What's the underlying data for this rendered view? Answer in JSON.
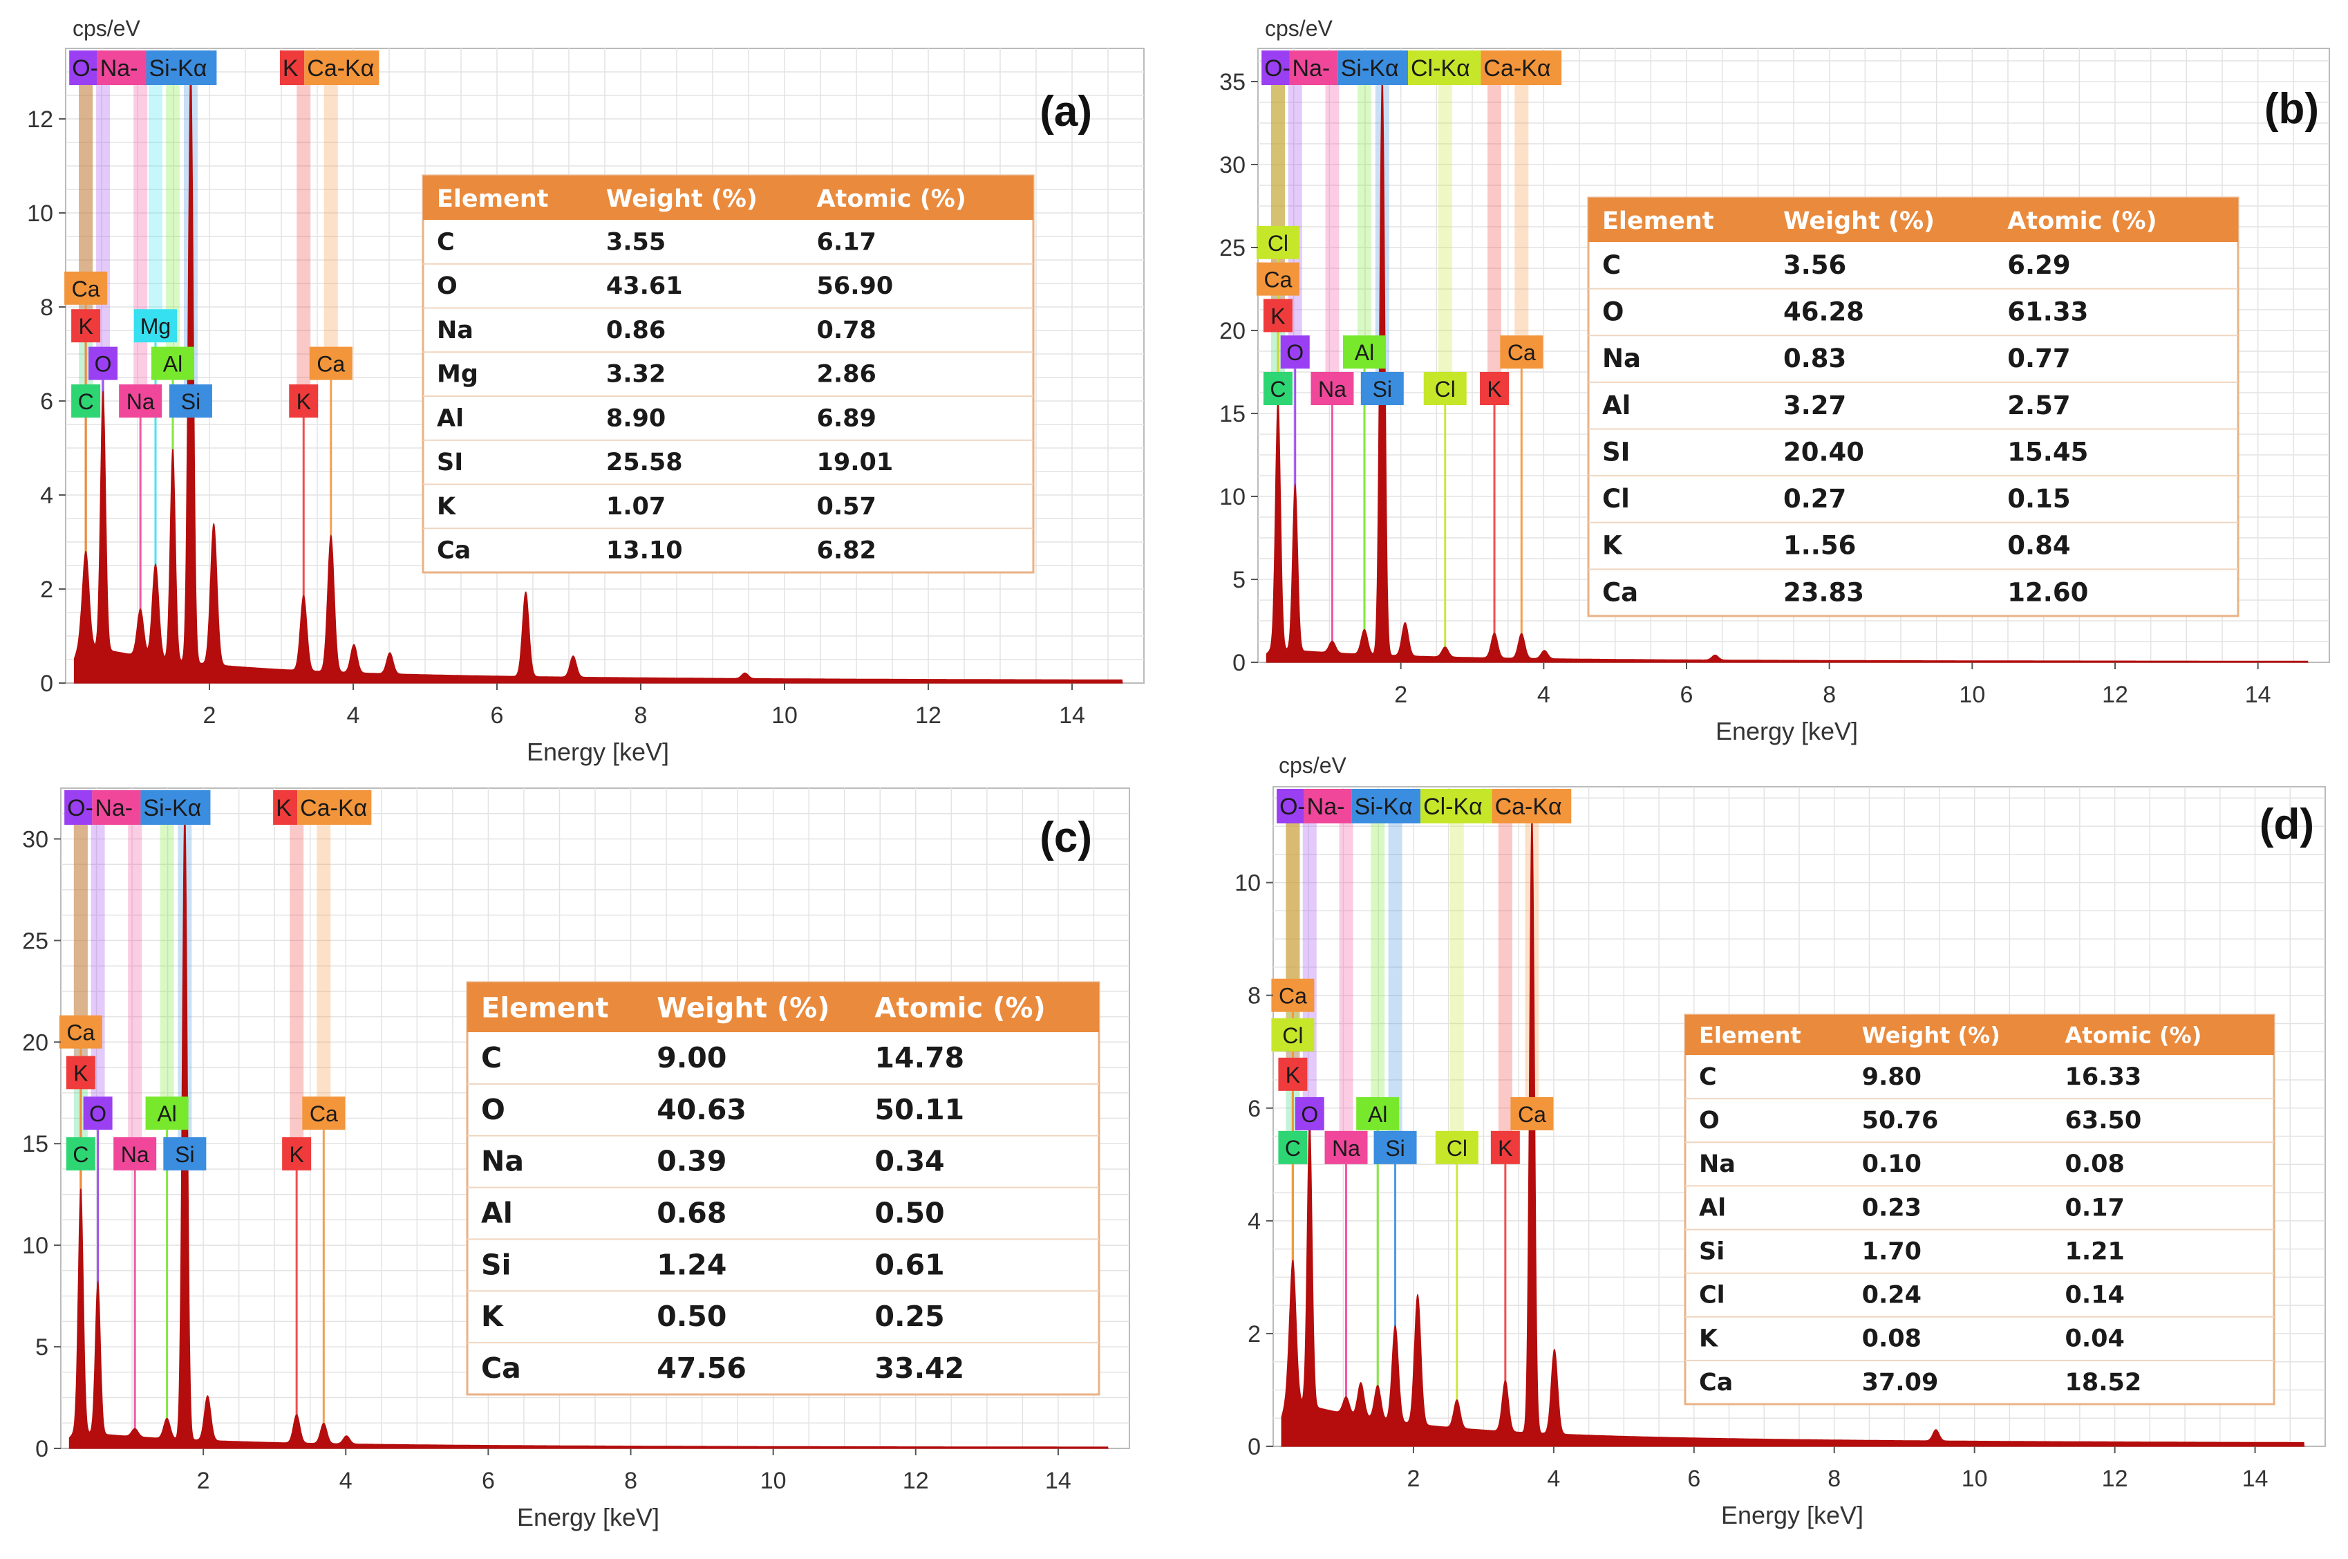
{
  "colors": {
    "spectrum": "#b50d0d",
    "grid": "#e3e3e3",
    "axis": "#555555",
    "table_header": "#ea8a3c",
    "table_border": "#e9b286",
    "row_line": "#f0d5bf"
  },
  "element_colors": {
    "C": "#2ed573",
    "O": "#9b3ff2",
    "Na": "#f0479b",
    "Mg": "#37e0f0",
    "Al": "#78e82c",
    "Si": "#3b8de0",
    "Cl": "#c6e62a",
    "K": "#ef3b3b",
    "Ca": "#f3953b"
  },
  "chart_data": [
    {
      "type": "line",
      "panel_label": "(a)",
      "y_unit": "cps/eV",
      "xlabel": "Energy [keV]",
      "xlim": [
        0.0,
        15.0
      ],
      "ylim": [
        0,
        13.5
      ],
      "x_ticks": [
        2,
        4,
        6,
        8,
        10,
        12,
        14
      ],
      "y_ticks": [
        0,
        2,
        4,
        6,
        8,
        10,
        12
      ],
      "legend_labels": [
        "O-",
        "Na-",
        "Si-Kα",
        "K",
        "Ca-Kα"
      ],
      "peaks": [
        {
          "x": 0.28,
          "y": 2.0
        },
        {
          "x": 0.52,
          "y": 5.5
        },
        {
          "x": 1.04,
          "y": 1.0
        },
        {
          "x": 1.25,
          "y": 2.0
        },
        {
          "x": 1.49,
          "y": 4.5
        },
        {
          "x": 1.74,
          "y": 12.7
        },
        {
          "x": 2.06,
          "y": 3.0
        },
        {
          "x": 3.31,
          "y": 1.6
        },
        {
          "x": 3.69,
          "y": 2.9
        },
        {
          "x": 4.01,
          "y": 0.6
        },
        {
          "x": 4.51,
          "y": 0.45
        },
        {
          "x": 6.4,
          "y": 1.8
        },
        {
          "x": 7.06,
          "y": 0.45
        },
        {
          "x": 9.45,
          "y": 0.12
        }
      ],
      "markers": [
        {
          "label": "C",
          "el": "C",
          "x": 0.28,
          "y": 6.0
        },
        {
          "label": "O",
          "el": "O",
          "x": 0.52,
          "y": 6.8
        },
        {
          "label": "Na",
          "el": "Na",
          "x": 1.04,
          "y": 6.0
        },
        {
          "label": "Mg",
          "el": "Mg",
          "x": 1.25,
          "y": 7.6
        },
        {
          "label": "Al",
          "el": "Al",
          "x": 1.49,
          "y": 6.8
        },
        {
          "label": "Si",
          "el": "Si",
          "x": 1.74,
          "y": 6.0
        },
        {
          "label": "K",
          "el": "K",
          "x": 0.28,
          "y": 7.6
        },
        {
          "label": "Ca",
          "el": "Ca",
          "x": 0.28,
          "y": 8.4
        },
        {
          "label": "K",
          "el": "K",
          "x": 3.31,
          "y": 6.0
        },
        {
          "label": "Ca",
          "el": "Ca",
          "x": 3.69,
          "y": 6.8
        }
      ],
      "table": {
        "headers": [
          "Element",
          "Weight (%)",
          "Atomic (%)"
        ],
        "rows": [
          [
            "C",
            "3.55",
            "6.17"
          ],
          [
            "O",
            "43.61",
            "56.90"
          ],
          [
            "Na",
            "0.86",
            "0.78"
          ],
          [
            "Mg",
            "3.32",
            "2.86"
          ],
          [
            "Al",
            "8.90",
            "6.89"
          ],
          [
            "SI",
            "25.58",
            "19.01"
          ],
          [
            "K",
            "1.07",
            "0.57"
          ],
          [
            "Ca",
            "13.10",
            "6.82"
          ]
        ]
      }
    },
    {
      "type": "line",
      "panel_label": "(b)",
      "y_unit": "cps/eV",
      "xlabel": "Energy [keV]",
      "xlim": [
        0.0,
        15.0
      ],
      "ylim": [
        0,
        37
      ],
      "x_ticks": [
        2,
        4,
        6,
        8,
        10,
        12,
        14
      ],
      "y_ticks": [
        0,
        5,
        10,
        15,
        20,
        25,
        30,
        35
      ],
      "legend_labels": [
        "O-",
        "Na-",
        "Si-Kα",
        "Cl-Kα",
        "Ca-Kα"
      ],
      "peaks": [
        {
          "x": 0.28,
          "y": 15.0
        },
        {
          "x": 0.52,
          "y": 10.0
        },
        {
          "x": 1.04,
          "y": 0.7
        },
        {
          "x": 1.49,
          "y": 1.5
        },
        {
          "x": 1.74,
          "y": 35.0
        },
        {
          "x": 2.06,
          "y": 2.0
        },
        {
          "x": 2.62,
          "y": 0.6
        },
        {
          "x": 3.31,
          "y": 1.5
        },
        {
          "x": 3.69,
          "y": 1.5
        },
        {
          "x": 4.01,
          "y": 0.5
        },
        {
          "x": 6.4,
          "y": 0.3
        }
      ],
      "markers": [
        {
          "label": "C",
          "el": "C",
          "x": 0.28,
          "y": 16.5
        },
        {
          "label": "O",
          "el": "O",
          "x": 0.52,
          "y": 18.7
        },
        {
          "label": "Na",
          "el": "Na",
          "x": 1.04,
          "y": 16.5
        },
        {
          "label": "Al",
          "el": "Al",
          "x": 1.49,
          "y": 18.7
        },
        {
          "label": "Si",
          "el": "Si",
          "x": 1.74,
          "y": 16.5
        },
        {
          "label": "Cl",
          "el": "Cl",
          "x": 2.62,
          "y": 16.5
        },
        {
          "label": "K",
          "el": "K",
          "x": 3.31,
          "y": 16.5
        },
        {
          "label": "Ca",
          "el": "Ca",
          "x": 3.69,
          "y": 18.7
        },
        {
          "label": "K",
          "el": "K",
          "x": 0.28,
          "y": 20.9
        },
        {
          "label": "Ca",
          "el": "Ca",
          "x": 0.28,
          "y": 23.1
        },
        {
          "label": "Cl",
          "el": "Cl",
          "x": 0.28,
          "y": 25.3
        }
      ],
      "table": {
        "headers": [
          "Element",
          "Weight (%)",
          "Atomic (%)"
        ],
        "rows": [
          [
            "C",
            "3.56",
            "6.29"
          ],
          [
            "O",
            "46.28",
            "61.33"
          ],
          [
            "Na",
            "0.83",
            "0.77"
          ],
          [
            "Al",
            "3.27",
            "2.57"
          ],
          [
            "SI",
            "20.40",
            "15.45"
          ],
          [
            "Cl",
            "0.27",
            "0.15"
          ],
          [
            "K",
            "1..56",
            "0.84"
          ],
          [
            "Ca",
            "23.83",
            "12.60"
          ]
        ]
      }
    },
    {
      "type": "line",
      "panel_label": "(c)",
      "xlabel": "Energy [keV]",
      "xlim": [
        0.0,
        15.0
      ],
      "ylim": [
        0,
        32.5
      ],
      "x_ticks": [
        2,
        4,
        6,
        8,
        10,
        12,
        14
      ],
      "y_ticks": [
        0,
        5,
        10,
        15,
        20,
        25,
        30
      ],
      "legend_labels": [
        "O-",
        "Na-",
        "Si-Kα",
        "K",
        "Ca-Kα"
      ],
      "peaks": [
        {
          "x": 0.28,
          "y": 12.0
        },
        {
          "x": 0.52,
          "y": 7.5
        },
        {
          "x": 1.04,
          "y": 0.4
        },
        {
          "x": 1.49,
          "y": 1.0
        },
        {
          "x": 1.74,
          "y": 31.0
        },
        {
          "x": 2.06,
          "y": 2.2
        },
        {
          "x": 3.31,
          "y": 1.4
        },
        {
          "x": 3.69,
          "y": 1.0
        },
        {
          "x": 4.01,
          "y": 0.4
        }
      ],
      "markers": [
        {
          "label": "C",
          "el": "C",
          "x": 0.28,
          "y": 14.5
        },
        {
          "label": "O",
          "el": "O",
          "x": 0.52,
          "y": 16.5
        },
        {
          "label": "Na",
          "el": "Na",
          "x": 1.04,
          "y": 14.5
        },
        {
          "label": "Al",
          "el": "Al",
          "x": 1.49,
          "y": 16.5
        },
        {
          "label": "Si",
          "el": "Si",
          "x": 1.74,
          "y": 14.5
        },
        {
          "label": "K",
          "el": "K",
          "x": 0.28,
          "y": 18.5
        },
        {
          "label": "Ca",
          "el": "Ca",
          "x": 0.28,
          "y": 20.5
        },
        {
          "label": "K",
          "el": "K",
          "x": 3.31,
          "y": 14.5
        },
        {
          "label": "Ca",
          "el": "Ca",
          "x": 3.69,
          "y": 16.5
        }
      ],
      "table": {
        "headers": [
          "Element",
          "Weight (%)",
          "Atomic (%)"
        ],
        "rows": [
          [
            "C",
            "9.00",
            "14.78"
          ],
          [
            "O",
            "40.63",
            "50.11"
          ],
          [
            "Na",
            "0.39",
            "0.34"
          ],
          [
            "Al",
            "0.68",
            "0.50"
          ],
          [
            "Si",
            "1.24",
            "0.61"
          ],
          [
            "K",
            "0.50",
            "0.25"
          ],
          [
            "Ca",
            "47.56",
            "33.42"
          ]
        ]
      }
    },
    {
      "type": "line",
      "panel_label": "(d)",
      "y_unit": "cps/eV",
      "xlabel": "Energy [keV]",
      "xlim": [
        0.0,
        15.0
      ],
      "ylim": [
        0,
        11.7
      ],
      "x_ticks": [
        2,
        4,
        6,
        8,
        10,
        12,
        14
      ],
      "y_ticks": [
        0,
        2,
        4,
        6,
        8,
        10
      ],
      "legend_labels": [
        "O-",
        "Na-",
        "Si-Kα",
        "Cl-Kα",
        "Ca-Kα"
      ],
      "peaks": [
        {
          "x": 0.28,
          "y": 2.5
        },
        {
          "x": 0.52,
          "y": 5.0
        },
        {
          "x": 1.04,
          "y": 0.3
        },
        {
          "x": 1.25,
          "y": 0.6
        },
        {
          "x": 1.49,
          "y": 0.6
        },
        {
          "x": 1.74,
          "y": 1.7
        },
        {
          "x": 2.06,
          "y": 2.3
        },
        {
          "x": 2.62,
          "y": 0.5
        },
        {
          "x": 3.31,
          "y": 0.9
        },
        {
          "x": 3.69,
          "y": 11.0
        },
        {
          "x": 4.01,
          "y": 1.5
        },
        {
          "x": 9.45,
          "y": 0.2
        }
      ],
      "markers": [
        {
          "label": "C",
          "el": "C",
          "x": 0.28,
          "y": 5.3
        },
        {
          "label": "O",
          "el": "O",
          "x": 0.52,
          "y": 5.9
        },
        {
          "label": "Na",
          "el": "Na",
          "x": 1.04,
          "y": 5.3
        },
        {
          "label": "Al",
          "el": "Al",
          "x": 1.49,
          "y": 5.9
        },
        {
          "label": "Si",
          "el": "Si",
          "x": 1.74,
          "y": 5.3
        },
        {
          "label": "Cl",
          "el": "Cl",
          "x": 2.62,
          "y": 5.3
        },
        {
          "label": "K",
          "el": "K",
          "x": 3.31,
          "y": 5.3
        },
        {
          "label": "Ca",
          "el": "Ca",
          "x": 3.69,
          "y": 5.9
        },
        {
          "label": "K",
          "el": "K",
          "x": 0.28,
          "y": 6.6
        },
        {
          "label": "Cl",
          "el": "Cl",
          "x": 0.28,
          "y": 7.3
        },
        {
          "label": "Ca",
          "el": "Ca",
          "x": 0.28,
          "y": 8.0
        }
      ],
      "table": {
        "headers": [
          "Element",
          "Weight (%)",
          "Atomic (%)"
        ],
        "rows": [
          [
            "C",
            "9.80",
            "16.33"
          ],
          [
            "O",
            "50.76",
            "63.50"
          ],
          [
            "Na",
            "0.10",
            "0.08"
          ],
          [
            "Al",
            "0.23",
            "0.17"
          ],
          [
            "Si",
            "1.70",
            "1.21"
          ],
          [
            "Cl",
            "0.24",
            "0.14"
          ],
          [
            "K",
            "0.08",
            "0.04"
          ],
          [
            "Ca",
            "37.09",
            "18.52"
          ]
        ]
      }
    }
  ]
}
